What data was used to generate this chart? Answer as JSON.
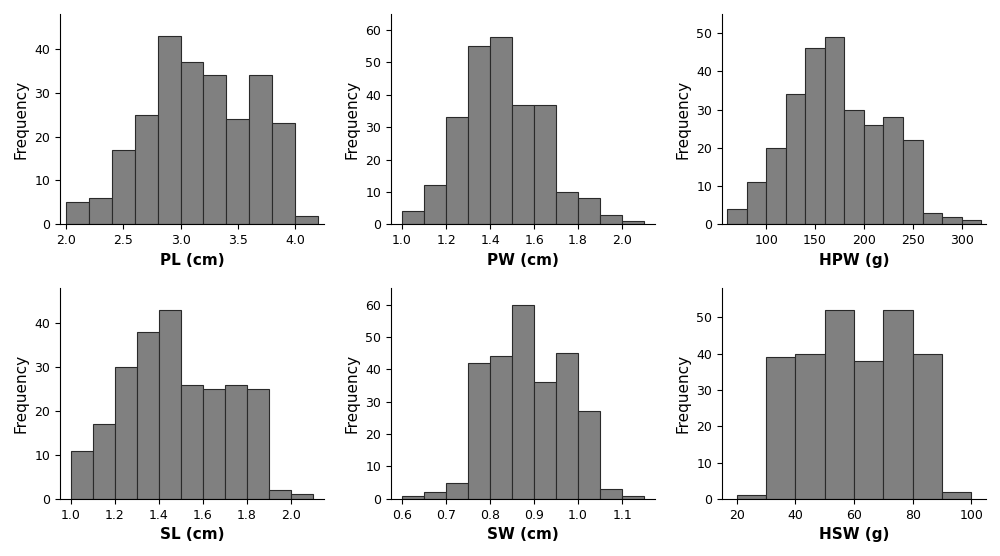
{
  "plots": [
    {
      "xlabel": "PL (cm)",
      "ylabel": "Frequency",
      "bin_edges": [
        2.0,
        2.2,
        2.4,
        2.6,
        2.8,
        3.0,
        3.2,
        3.4,
        3.6,
        3.8,
        4.0,
        4.2
      ],
      "frequencies": [
        5,
        6,
        17,
        25,
        43,
        37,
        34,
        24,
        34,
        23,
        2
      ],
      "xlim": [
        1.95,
        4.25
      ],
      "ylim": [
        0,
        48
      ],
      "xticks": [
        2.0,
        2.5,
        3.0,
        3.5,
        4.0
      ],
      "yticks": [
        0,
        10,
        20,
        30,
        40
      ]
    },
    {
      "xlabel": "PW (cm)",
      "ylabel": "Frequency",
      "bin_edges": [
        1.0,
        1.1,
        1.2,
        1.3,
        1.4,
        1.5,
        1.6,
        1.7,
        1.8,
        1.9,
        2.0,
        2.1
      ],
      "frequencies": [
        4,
        12,
        33,
        55,
        58,
        37,
        37,
        10,
        8,
        3,
        1
      ],
      "xlim": [
        0.95,
        2.15
      ],
      "ylim": [
        0,
        65
      ],
      "xticks": [
        1.0,
        1.2,
        1.4,
        1.6,
        1.8,
        2.0
      ],
      "yticks": [
        0,
        10,
        20,
        30,
        40,
        50,
        60
      ]
    },
    {
      "xlabel": "HPW (g)",
      "ylabel": "Frequency",
      "bin_edges": [
        60,
        80,
        100,
        120,
        140,
        160,
        180,
        200,
        220,
        240,
        260,
        280,
        300,
        320
      ],
      "frequencies": [
        4,
        11,
        20,
        34,
        46,
        49,
        30,
        26,
        28,
        22,
        3,
        2,
        1
      ],
      "xlim": [
        55,
        325
      ],
      "ylim": [
        0,
        55
      ],
      "xticks": [
        100,
        150,
        200,
        250,
        300
      ],
      "yticks": [
        0,
        10,
        20,
        30,
        40,
        50
      ]
    },
    {
      "xlabel": "SL (cm)",
      "ylabel": "Frequency",
      "bin_edges": [
        1.0,
        1.1,
        1.2,
        1.3,
        1.4,
        1.5,
        1.6,
        1.7,
        1.8,
        1.9,
        2.0,
        2.1
      ],
      "frequencies": [
        11,
        17,
        30,
        38,
        43,
        26,
        25,
        26,
        25,
        2,
        1
      ],
      "xlim": [
        0.95,
        2.15
      ],
      "ylim": [
        0,
        48
      ],
      "xticks": [
        1.0,
        1.2,
        1.4,
        1.6,
        1.8,
        2.0
      ],
      "yticks": [
        0,
        10,
        20,
        30,
        40
      ]
    },
    {
      "xlabel": "SW (cm)",
      "ylabel": "Frequency",
      "bin_edges": [
        0.6,
        0.65,
        0.7,
        0.75,
        0.8,
        0.85,
        0.9,
        0.95,
        1.0,
        1.05,
        1.1,
        1.15
      ],
      "frequencies": [
        1,
        2,
        5,
        42,
        44,
        60,
        36,
        45,
        27,
        3,
        1
      ],
      "xlim": [
        0.575,
        1.175
      ],
      "ylim": [
        0,
        65
      ],
      "xticks": [
        0.6,
        0.7,
        0.8,
        0.9,
        1.0,
        1.1
      ],
      "yticks": [
        0,
        10,
        20,
        30,
        40,
        50,
        60
      ]
    },
    {
      "xlabel": "HSW (g)",
      "ylabel": "Frequency",
      "bin_edges": [
        20,
        30,
        40,
        50,
        60,
        70,
        80,
        90,
        100
      ],
      "frequencies": [
        1,
        39,
        40,
        52,
        38,
        52,
        40,
        2
      ],
      "xlim": [
        15,
        105
      ],
      "ylim": [
        0,
        58
      ],
      "xticks": [
        20,
        40,
        60,
        80,
        100
      ],
      "yticks": [
        0,
        10,
        20,
        30,
        40,
        50
      ]
    }
  ],
  "figure_bg": "#ffffff",
  "bar_color": "#808080",
  "edge_color": "#2a2a2a",
  "tick_fontsize": 9,
  "label_fontsize": 11,
  "linewidth": 0.8
}
